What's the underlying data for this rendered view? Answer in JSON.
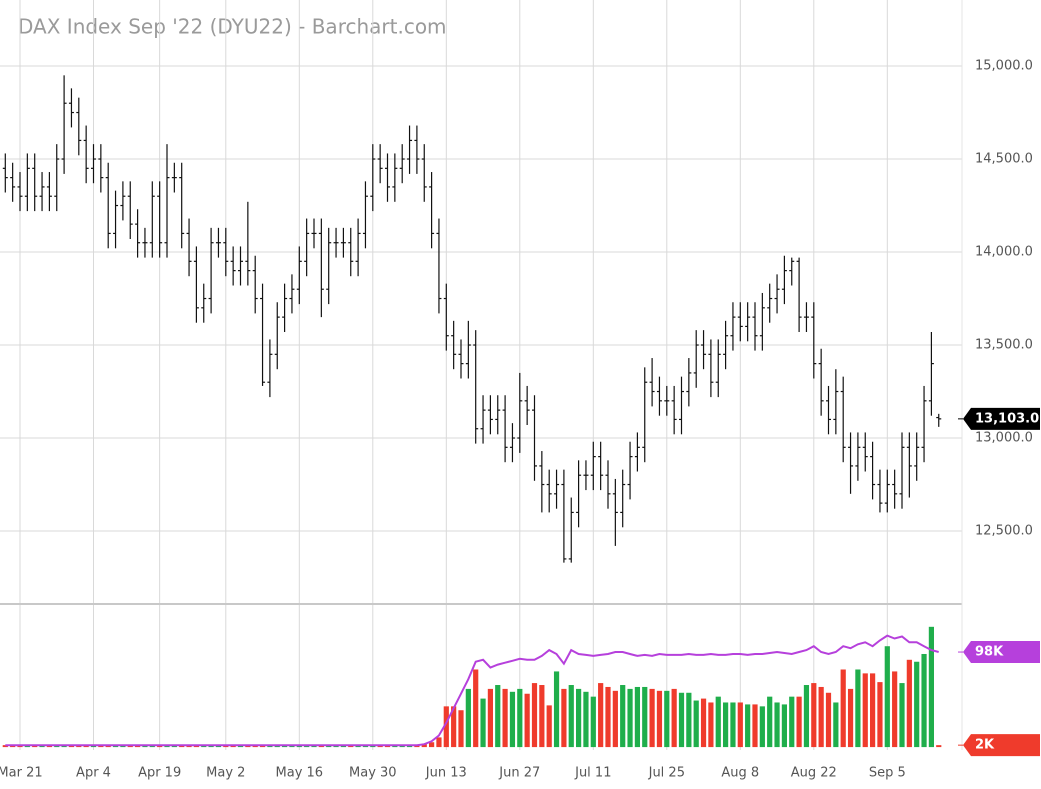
{
  "chart_data": {
    "type": "ohlc",
    "title": "DAX Index Sep '22 (DYU22) - Barchart.com",
    "categories": [
      null,
      null,
      "Mar 21",
      null,
      null,
      null,
      null,
      null,
      null,
      null,
      null,
      null,
      "Apr 4",
      null,
      null,
      null,
      null,
      null,
      null,
      null,
      null,
      "Apr 19",
      null,
      null,
      null,
      null,
      null,
      null,
      null,
      null,
      "May 2",
      null,
      null,
      null,
      null,
      null,
      null,
      null,
      null,
      null,
      "May 16",
      null,
      null,
      null,
      null,
      null,
      null,
      null,
      null,
      null,
      "May 30",
      null,
      null,
      null,
      null,
      null,
      null,
      null,
      null,
      null,
      "Jun 13",
      null,
      null,
      null,
      null,
      null,
      null,
      null,
      null,
      null,
      "Jun 27",
      null,
      null,
      null,
      null,
      null,
      null,
      null,
      null,
      null,
      "Jul 11",
      null,
      null,
      null,
      null,
      null,
      null,
      null,
      null,
      null,
      "Jul 25",
      null,
      null,
      null,
      null,
      null,
      null,
      null,
      null,
      null,
      "Aug 8",
      null,
      null,
      null,
      null,
      null,
      null,
      null,
      null,
      null,
      "Aug 22",
      null,
      null,
      null,
      null,
      null,
      null,
      null,
      null,
      null,
      "Sep 5",
      null,
      null,
      null,
      null,
      null,
      null,
      null
    ],
    "open": [
      14450,
      14400,
      14350,
      14300,
      14450,
      14300,
      14350,
      14300,
      14500,
      14800,
      14750,
      14600,
      14450,
      14500,
      14400,
      14100,
      14250,
      14300,
      14150,
      14050,
      14050,
      14300,
      14050,
      14400,
      14400,
      14100,
      13950,
      13700,
      13750,
      14050,
      14050,
      13950,
      13900,
      13950,
      13900,
      13750,
      13300,
      13450,
      13650,
      13750,
      13800,
      13950,
      14100,
      14100,
      13800,
      14050,
      14050,
      14050,
      13950,
      14100,
      14300,
      14500,
      14450,
      14350,
      14450,
      14500,
      14600,
      14500,
      14350,
      14100,
      13750,
      13550,
      13450,
      13400,
      13500,
      13050,
      13150,
      13100,
      13150,
      12950,
      13000,
      13200,
      13150,
      12850,
      12750,
      12700,
      12750,
      12350,
      12600,
      12800,
      12800,
      12900,
      12800,
      12700,
      12600,
      12750,
      12900,
      12950,
      13300,
      13250,
      13200,
      13200,
      13100,
      13250,
      13350,
      13500,
      13450,
      13300,
      13450,
      13550,
      13650,
      13600,
      13650,
      13550,
      13700,
      13750,
      13800,
      13900,
      13950,
      13650,
      13650,
      13400,
      13200,
      13100,
      13250,
      12950,
      12850,
      12950,
      12900,
      12750,
      12650,
      12750,
      12700,
      12950,
      12850,
      12950,
      13200,
      13110
    ],
    "high": [
      14530,
      14480,
      14430,
      14530,
      14530,
      14430,
      14430,
      14580,
      14950,
      14880,
      14830,
      14680,
      14580,
      14580,
      14480,
      14330,
      14380,
      14380,
      14230,
      14130,
      14380,
      14380,
      14580,
      14480,
      14480,
      14180,
      14030,
      13830,
      14130,
      14130,
      14130,
      14030,
      14030,
      14270,
      13980,
      13830,
      13530,
      13730,
      13830,
      13880,
      14030,
      14180,
      14180,
      14180,
      14130,
      14130,
      14130,
      14130,
      14180,
      14380,
      14580,
      14580,
      14530,
      14530,
      14580,
      14680,
      14680,
      14580,
      14430,
      14180,
      13830,
      13630,
      13530,
      13630,
      13580,
      13230,
      13230,
      13230,
      13230,
      13080,
      13350,
      13280,
      13230,
      12930,
      12830,
      12830,
      12830,
      12680,
      12880,
      12880,
      12980,
      12980,
      12880,
      12780,
      12830,
      12980,
      13030,
      13380,
      13430,
      13330,
      13280,
      13280,
      13330,
      13430,
      13580,
      13580,
      13530,
      13530,
      13630,
      13730,
      13730,
      13730,
      13730,
      13780,
      13830,
      13880,
      13980,
      13970,
      13970,
      13730,
      13730,
      13480,
      13280,
      13370,
      13330,
      13030,
      13030,
      13030,
      12980,
      12830,
      12830,
      12830,
      13030,
      13030,
      13030,
      13280,
      13570,
      13130
    ],
    "low": [
      14320,
      14270,
      14220,
      14220,
      14220,
      14220,
      14220,
      14220,
      14420,
      14670,
      14520,
      14370,
      14370,
      14320,
      14020,
      14020,
      14170,
      14070,
      13970,
      13970,
      13970,
      13970,
      13970,
      14320,
      14020,
      13870,
      13620,
      13620,
      13670,
      13970,
      13870,
      13820,
      13820,
      13820,
      13670,
      13280,
      13220,
      13370,
      13570,
      13670,
      13720,
      13870,
      14020,
      13650,
      13720,
      13970,
      13970,
      13870,
      13870,
      14020,
      14220,
      14370,
      14270,
      14270,
      14370,
      14420,
      14420,
      14270,
      14020,
      13670,
      13470,
      13370,
      13320,
      13320,
      12970,
      12970,
      13020,
      13020,
      12870,
      12870,
      12920,
      13070,
      12770,
      12600,
      12600,
      12620,
      12330,
      12330,
      12520,
      12720,
      12720,
      12720,
      12620,
      12420,
      12520,
      12670,
      12820,
      12870,
      13170,
      13120,
      13120,
      13020,
      13020,
      13170,
      13270,
      13370,
      13220,
      13220,
      13370,
      13470,
      13520,
      13520,
      13470,
      13470,
      13620,
      13670,
      13720,
      13820,
      13570,
      13570,
      13320,
      13120,
      13020,
      13020,
      12870,
      12700,
      12770,
      12820,
      12670,
      12600,
      12600,
      12620,
      12620,
      12680,
      12770,
      12870,
      13120,
      13060
    ],
    "close": [
      14400,
      14350,
      14300,
      14450,
      14300,
      14350,
      14300,
      14500,
      14800,
      14750,
      14600,
      14450,
      14500,
      14400,
      14100,
      14250,
      14300,
      14150,
      14050,
      14050,
      14300,
      14050,
      14400,
      14400,
      14100,
      13950,
      13700,
      13750,
      14050,
      14050,
      13950,
      13900,
      13950,
      13900,
      13750,
      13300,
      13450,
      13650,
      13750,
      13800,
      13950,
      14100,
      14100,
      13800,
      14050,
      14050,
      14050,
      13950,
      14100,
      14300,
      14500,
      14450,
      14350,
      14450,
      14500,
      14600,
      14500,
      14350,
      14100,
      13750,
      13550,
      13450,
      13400,
      13500,
      13050,
      13150,
      13100,
      13150,
      12950,
      13000,
      13200,
      13150,
      12850,
      12750,
      12700,
      12750,
      12350,
      12600,
      12800,
      12800,
      12900,
      12800,
      12700,
      12600,
      12750,
      12900,
      12950,
      13300,
      13250,
      13200,
      13200,
      13100,
      13250,
      13350,
      13500,
      13450,
      13300,
      13450,
      13550,
      13650,
      13600,
      13650,
      13550,
      13700,
      13750,
      13800,
      13900,
      13950,
      13650,
      13650,
      13400,
      13200,
      13100,
      13250,
      12950,
      12850,
      12950,
      12900,
      12750,
      12650,
      12750,
      12700,
      12950,
      12850,
      12950,
      13200,
      13400,
      13103
    ],
    "color": "#111111",
    "ylim": [
      12113,
      15355
    ],
    "yticks": [
      {
        "value": 12500,
        "label": "12,500.0"
      },
      {
        "value": 13000,
        "label": "13,000.0"
      },
      {
        "value": 13500,
        "label": "13,500.0"
      },
      {
        "value": 14000,
        "label": "14,000.0"
      },
      {
        "value": 14500,
        "label": "14,500.0"
      },
      {
        "value": 15000,
        "label": "15,000.0"
      }
    ],
    "last_price": {
      "value": 13103,
      "label": "13,103.0"
    },
    "grid": true,
    "volume": {
      "up_color": "#1fae4b",
      "down_color": "#ef3b2c",
      "ma_color": "#b640dc",
      "values": [
        2,
        2,
        2,
        2,
        2,
        2,
        2,
        2,
        2,
        2,
        2,
        2,
        2,
        2,
        2,
        2,
        2,
        2,
        2,
        2,
        2,
        2,
        2,
        2,
        2,
        2,
        2,
        2,
        2,
        2,
        2,
        2,
        2,
        2,
        2,
        2,
        2,
        2,
        2,
        2,
        2,
        2,
        2,
        2,
        2,
        2,
        2,
        2,
        2,
        2,
        2,
        2,
        2,
        2,
        2,
        2,
        2,
        3,
        5,
        10,
        42,
        42,
        38,
        60,
        80,
        50,
        60,
        64,
        60,
        57,
        60,
        55,
        66,
        64,
        43,
        78,
        60,
        64,
        60,
        57,
        52,
        66,
        62,
        58,
        64,
        60,
        62,
        62,
        60,
        58,
        58,
        60,
        56,
        56,
        48,
        50,
        46,
        52,
        46,
        46,
        46,
        44,
        44,
        42,
        52,
        46,
        44,
        52,
        52,
        64,
        66,
        62,
        56,
        46,
        80,
        60,
        80,
        76,
        76,
        67,
        104,
        78,
        66,
        90,
        88,
        96,
        124,
        2
      ],
      "ma": [
        2,
        2,
        2,
        2,
        2,
        2,
        2,
        2,
        2,
        2,
        2,
        2,
        2,
        2,
        2,
        2,
        2,
        2,
        2,
        2,
        2,
        2,
        2,
        2,
        2,
        2,
        2,
        2,
        2,
        2,
        2,
        2,
        2,
        2,
        2,
        2,
        2,
        2,
        2,
        2,
        2,
        2,
        2,
        2,
        2,
        2,
        2,
        2,
        2,
        2,
        2,
        2,
        2,
        2,
        2,
        2,
        2,
        3,
        6,
        12,
        25,
        40,
        55,
        70,
        88,
        90,
        82,
        85,
        87,
        89,
        91,
        90,
        90,
        94,
        100,
        96,
        86,
        100,
        96,
        95,
        94,
        95,
        96,
        98,
        98,
        96,
        94,
        95,
        94,
        96,
        95,
        95,
        95,
        96,
        95,
        95,
        96,
        95,
        95,
        96,
        96,
        95,
        96,
        96,
        97,
        98,
        97,
        96,
        98,
        100,
        104,
        98,
        96,
        98,
        104,
        102,
        106,
        108,
        104,
        110,
        115,
        112,
        114,
        108,
        108,
        104,
        100,
        98
      ],
      "y2lim": [
        -3,
        146.5
      ],
      "y2ticks": [
        {
          "value": 2,
          "label": "2K"
        },
        {
          "value": 98,
          "label": "98K"
        }
      ]
    }
  }
}
